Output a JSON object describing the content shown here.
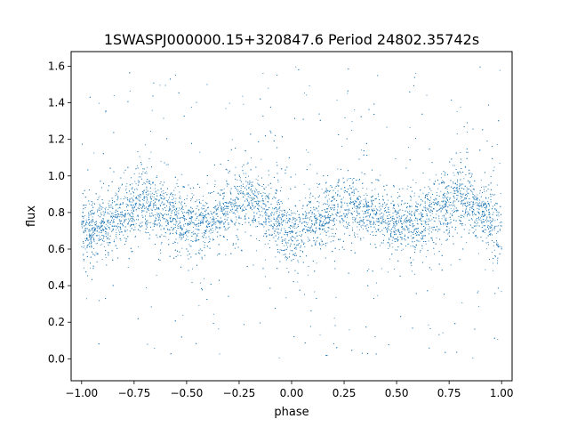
{
  "chart_data": {
    "type": "scatter",
    "title": "1SWASPJ000000.15+320847.6 Period 24802.35742s",
    "xlabel": "phase",
    "ylabel": "flux",
    "xlim": [
      -1.05,
      1.05
    ],
    "ylim": [
      -0.12,
      1.68
    ],
    "xticks": [
      -1.0,
      -0.75,
      -0.5,
      -0.25,
      0.0,
      0.25,
      0.5,
      0.75,
      1.0
    ],
    "xtick_labels": [
      "−1.00",
      "−0.75",
      "−0.50",
      "−0.25",
      "0.00",
      "0.25",
      "0.50",
      "0.75",
      "1.00"
    ],
    "yticks": [
      0.0,
      0.2,
      0.4,
      0.6,
      0.8,
      1.0,
      1.2,
      1.4,
      1.6
    ],
    "ytick_labels": [
      "0.0",
      "0.2",
      "0.4",
      "0.6",
      "0.8",
      "1.0",
      "1.2",
      "1.4",
      "1.6"
    ],
    "grid": false,
    "marker_color": "#1f77b4",
    "series": [
      {
        "x": [
          -1.0,
          -0.9,
          -0.8,
          -0.7,
          -0.6,
          -0.5,
          -0.4,
          -0.3,
          -0.2,
          -0.1,
          0.0,
          0.1,
          0.2,
          0.3,
          0.4,
          0.5,
          0.6,
          0.7,
          0.8,
          0.9,
          1.0
        ],
        "y": [
          0.68,
          0.73,
          0.8,
          0.86,
          0.8,
          0.73,
          0.74,
          0.82,
          0.88,
          0.8,
          0.68,
          0.74,
          0.8,
          0.85,
          0.8,
          0.73,
          0.74,
          0.82,
          0.88,
          0.8,
          0.68
        ]
      }
    ]
  }
}
